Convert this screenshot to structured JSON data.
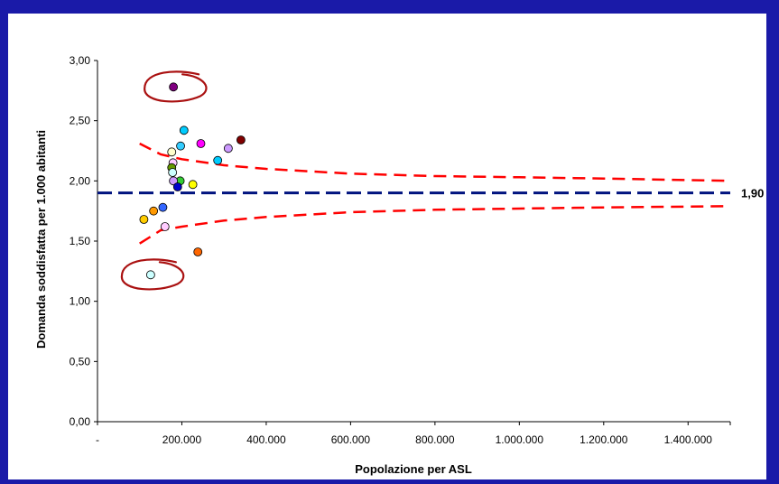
{
  "chart_data": {
    "type": "scatter",
    "title": "",
    "xlabel": "Popolazione per ASL",
    "ylabel": "Domanda soddisfatta per 1.000 abitanti",
    "xlim": [
      0,
      1500000
    ],
    "ylim": [
      0,
      3.0
    ],
    "x_ticks": [
      0,
      200000,
      400000,
      600000,
      800000,
      1000000,
      1200000,
      1400000
    ],
    "x_tick_labels": [
      "-",
      "200.000",
      "400.000",
      "600.000",
      "800.000",
      "1.000.000",
      "1.200.000",
      "1.400.000"
    ],
    "y_ticks": [
      0,
      0.5,
      1.0,
      1.5,
      2.0,
      2.5,
      3.0
    ],
    "y_tick_labels": [
      "0,00",
      "0,50",
      "1,00",
      "1,50",
      "2,00",
      "2,50",
      "3,00"
    ],
    "grid": false,
    "mean_line": {
      "value": 1.9,
      "label": "1,90",
      "color": "#00137f"
    },
    "control_limits": {
      "color": "#ff0000",
      "x": [
        100000,
        150000,
        200000,
        300000,
        400000,
        600000,
        800000,
        1000000,
        1200000,
        1500000
      ],
      "upper": [
        2.31,
        2.22,
        2.18,
        2.13,
        2.1,
        2.06,
        2.04,
        2.03,
        2.02,
        2.0
      ],
      "lower": [
        1.48,
        1.59,
        1.62,
        1.67,
        1.7,
        1.74,
        1.76,
        1.77,
        1.78,
        1.79
      ]
    },
    "points": [
      {
        "x": 180000,
        "y": 2.78,
        "color": "#800080"
      },
      {
        "x": 205000,
        "y": 2.42,
        "color": "#00ccff"
      },
      {
        "x": 340000,
        "y": 2.34,
        "color": "#800000"
      },
      {
        "x": 245000,
        "y": 2.31,
        "color": "#ff00ff"
      },
      {
        "x": 197000,
        "y": 2.29,
        "color": "#33ccff"
      },
      {
        "x": 310000,
        "y": 2.27,
        "color": "#cc99ff"
      },
      {
        "x": 176000,
        "y": 2.24,
        "color": "#ffffcc"
      },
      {
        "x": 285000,
        "y": 2.17,
        "color": "#00ccff"
      },
      {
        "x": 179000,
        "y": 2.15,
        "color": "#ffccff"
      },
      {
        "x": 176000,
        "y": 2.11,
        "color": "#669900"
      },
      {
        "x": 178000,
        "y": 2.07,
        "color": "#ccffff"
      },
      {
        "x": 196000,
        "y": 2.0,
        "color": "#33cc33"
      },
      {
        "x": 180000,
        "y": 2.0,
        "color": "#cc99ff"
      },
      {
        "x": 226000,
        "y": 1.97,
        "color": "#ffff00"
      },
      {
        "x": 190000,
        "y": 1.95,
        "color": "#0000cc"
      },
      {
        "x": 155000,
        "y": 1.78,
        "color": "#3366ff"
      },
      {
        "x": 133000,
        "y": 1.75,
        "color": "#ff9900"
      },
      {
        "x": 110000,
        "y": 1.68,
        "color": "#ffcc00"
      },
      {
        "x": 160000,
        "y": 1.62,
        "color": "#ffccff"
      },
      {
        "x": 238000,
        "y": 1.41,
        "color": "#ff6600"
      },
      {
        "x": 126000,
        "y": 1.22,
        "color": "#ccffff"
      }
    ],
    "annotations": [
      {
        "shape": "hand-drawn-circle",
        "around_point_index": 0,
        "color": "#aa1111"
      },
      {
        "shape": "hand-drawn-circle",
        "around_point_index": 20,
        "color": "#aa1111"
      }
    ]
  }
}
